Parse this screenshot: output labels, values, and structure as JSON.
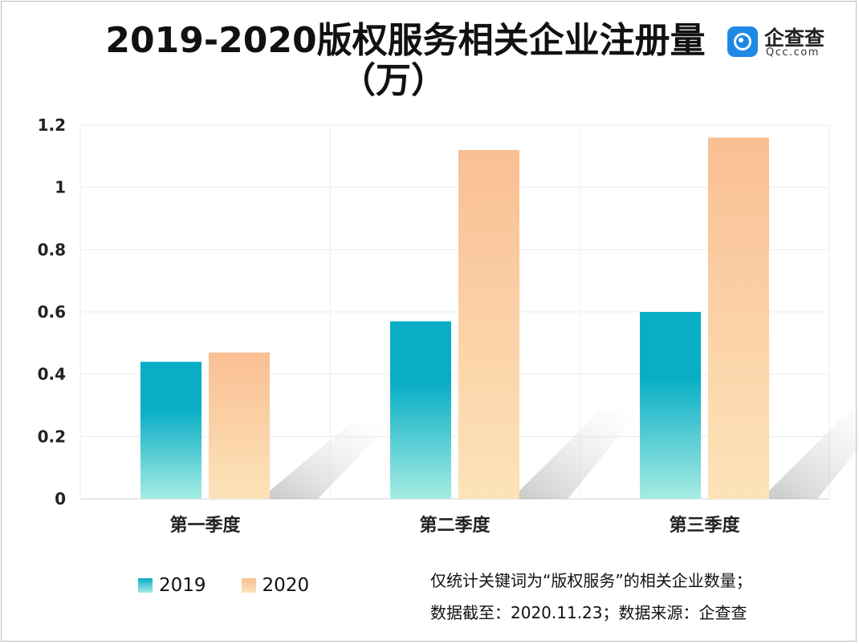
{
  "title": {
    "line1": "2019-2020版权服务相关企业注册量",
    "line2": "（万）"
  },
  "logo": {
    "cn": "企查查",
    "en": "Qcc.com",
    "color": "#1e88e5"
  },
  "chart_data": {
    "type": "bar",
    "categories": [
      "第一季度",
      "第二季度",
      "第三季度"
    ],
    "series": [
      {
        "name": "2019",
        "values": [
          0.44,
          0.57,
          0.6
        ],
        "color_top": "#09aec6",
        "color_bottom": "#a6ece3"
      },
      {
        "name": "2020",
        "values": [
          0.47,
          1.12,
          1.16
        ],
        "color_top": "#f9bf93",
        "color_bottom": "#fde3b9"
      }
    ],
    "yticks": [
      "0",
      "0.2",
      "0.4",
      "0.6",
      "0.8",
      "1",
      "1.2"
    ],
    "ylim": [
      0,
      1.2
    ],
    "grid": true,
    "legend_position": "bottom-left"
  },
  "notes": {
    "line1": "仅统计关键词为“版权服务”的相关企业数量；",
    "line2": "数据截至：2020.11.23；数据来源：企查查"
  }
}
